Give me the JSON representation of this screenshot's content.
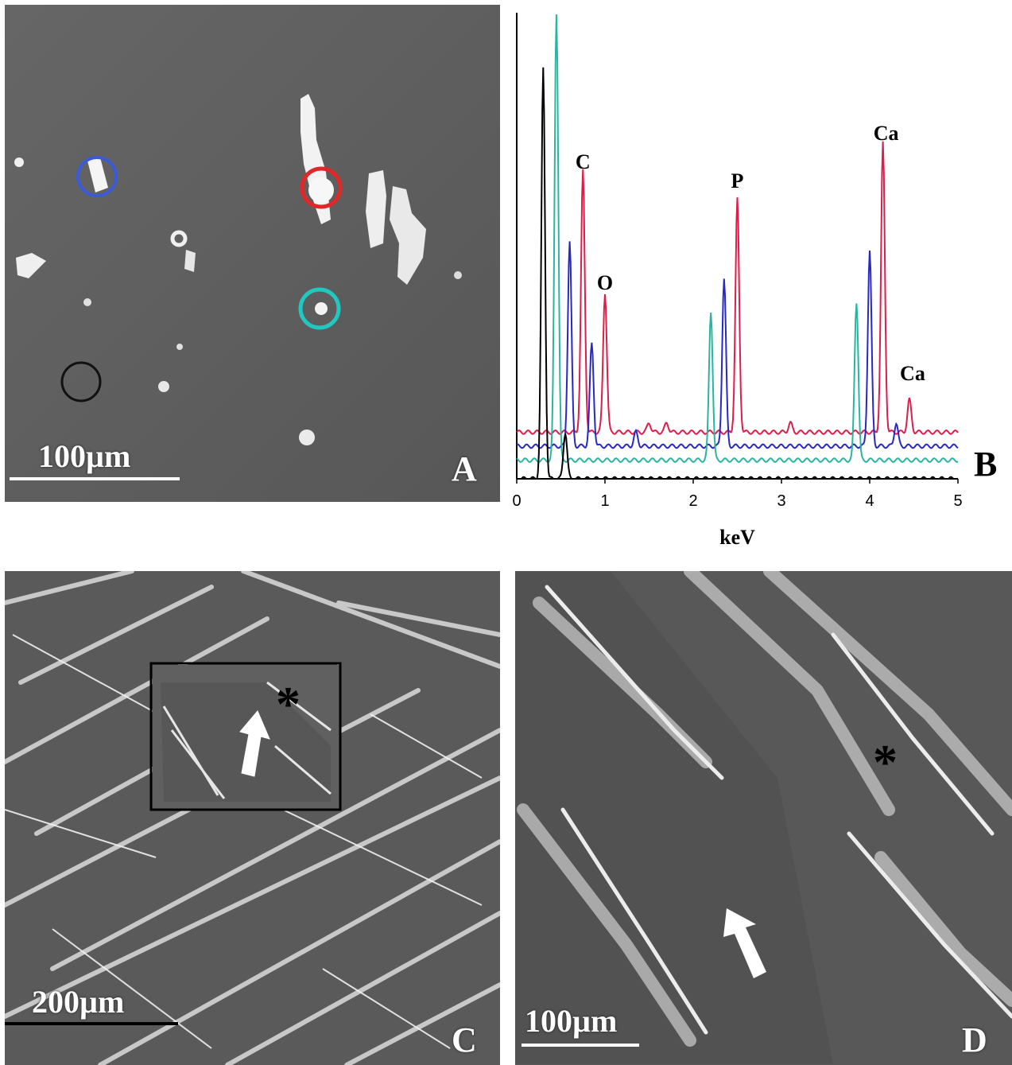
{
  "panels": {
    "A": {
      "letter": "A",
      "scale_label": "100µm"
    },
    "B": {
      "letter": "B"
    },
    "C": {
      "letter": "C",
      "scale_label": "200µm",
      "marker": "*"
    },
    "D": {
      "letter": "D",
      "scale_label": "100µm",
      "marker": "*"
    }
  },
  "colors": {
    "spectrum_red": "#dc1e4a",
    "spectrum_blue": "#2828c8",
    "spectrum_teal": "#2ab5a0",
    "spectrum_black": "#000000"
  },
  "chart_data": {
    "type": "line",
    "xlabel": "keV",
    "ylabel": "",
    "xlim": [
      0,
      5
    ],
    "x_ticks": [
      "0",
      "1",
      "2",
      "3",
      "4",
      "5"
    ],
    "grid": false,
    "peak_labels": [
      {
        "text": "C",
        "x": 0.75
      },
      {
        "text": "O",
        "x": 1.0
      },
      {
        "text": "P",
        "x": 2.5
      },
      {
        "text": "Ca",
        "x": 4.15
      },
      {
        "text": "Ca",
        "x": 4.45
      }
    ],
    "series": [
      {
        "color": "#dc1e4a",
        "baseline": 0.1,
        "peaks": [
          [
            0.75,
            0.56
          ],
          [
            1.0,
            0.3
          ],
          [
            1.5,
            0.02
          ],
          [
            1.7,
            0.02
          ],
          [
            2.5,
            0.5
          ],
          [
            3.1,
            0.02
          ],
          [
            4.15,
            0.62
          ],
          [
            4.45,
            0.07
          ]
        ]
      },
      {
        "color": "#2828c8",
        "baseline": 0.07,
        "peaks": [
          [
            0.6,
            0.44
          ],
          [
            0.85,
            0.22
          ],
          [
            1.35,
            0.03
          ],
          [
            2.35,
            0.36
          ],
          [
            4.0,
            0.42
          ],
          [
            4.3,
            0.05
          ]
        ]
      },
      {
        "color": "#2ab5a0",
        "baseline": 0.04,
        "peaks": [
          [
            0.45,
            0.96
          ],
          [
            2.2,
            0.32
          ],
          [
            3.85,
            0.34
          ]
        ]
      },
      {
        "color": "#000000",
        "baseline": 0.0,
        "peaks": [
          [
            0.3,
            0.88
          ],
          [
            0.55,
            0.1
          ]
        ]
      }
    ]
  }
}
